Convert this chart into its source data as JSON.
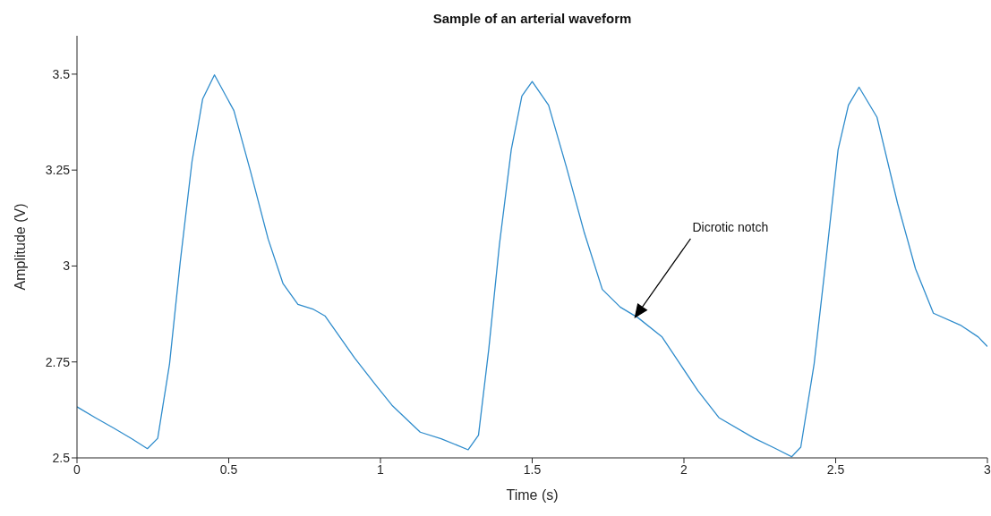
{
  "chart_data": {
    "type": "line",
    "title": "Sample of an arterial waveform",
    "xlabel": "Time (s)",
    "ylabel": "Amplitude (V)",
    "xlim": [
      0,
      3
    ],
    "xticks": [
      0,
      0.5,
      1,
      1.5,
      2,
      2.5,
      3
    ],
    "ylim": [
      2.5,
      3.6
    ],
    "yticks": [
      2.5,
      2.75,
      3,
      3.25,
      3.5
    ],
    "grid": false,
    "marker": "none",
    "line_style": "solid",
    "annotations": [
      "Dicrotic notch"
    ],
    "series": [
      {
        "color": "#2f8ccc",
        "x": [
          0,
          0.06,
          0.12,
          0.18,
          0.232,
          0.266,
          0.305,
          0.34,
          0.379,
          0.414,
          0.453,
          0.517,
          0.571,
          0.63,
          0.679,
          0.728,
          0.777,
          0.817,
          0.915,
          0.984,
          1.038,
          1.131,
          1.2,
          1.289,
          1.323,
          1.357,
          1.392,
          1.431,
          1.466,
          1.5,
          1.554,
          1.613,
          1.672,
          1.731,
          1.79,
          1.849,
          1.928,
          1.987,
          2.046,
          2.115,
          2.232,
          2.3,
          2.355,
          2.385,
          2.429,
          2.468,
          2.508,
          2.542,
          2.577,
          2.636,
          2.704,
          2.763,
          2.822,
          2.911,
          2.97,
          3
        ],
        "values": [
          2.633,
          2.605,
          2.578,
          2.55,
          2.524,
          2.551,
          2.745,
          3.009,
          3.272,
          3.435,
          3.498,
          3.405,
          3.249,
          3.07,
          2.954,
          2.9,
          2.888,
          2.87,
          2.76,
          2.69,
          2.637,
          2.567,
          2.55,
          2.521,
          2.559,
          2.784,
          3.056,
          3.303,
          3.443,
          3.481,
          3.419,
          3.257,
          3.086,
          2.939,
          2.893,
          2.865,
          2.815,
          2.745,
          2.675,
          2.605,
          2.551,
          2.525,
          2.503,
          2.528,
          2.745,
          3.016,
          3.303,
          3.419,
          3.466,
          3.388,
          3.163,
          2.993,
          2.877,
          2.846,
          2.815,
          2.79
        ]
      }
    ]
  }
}
